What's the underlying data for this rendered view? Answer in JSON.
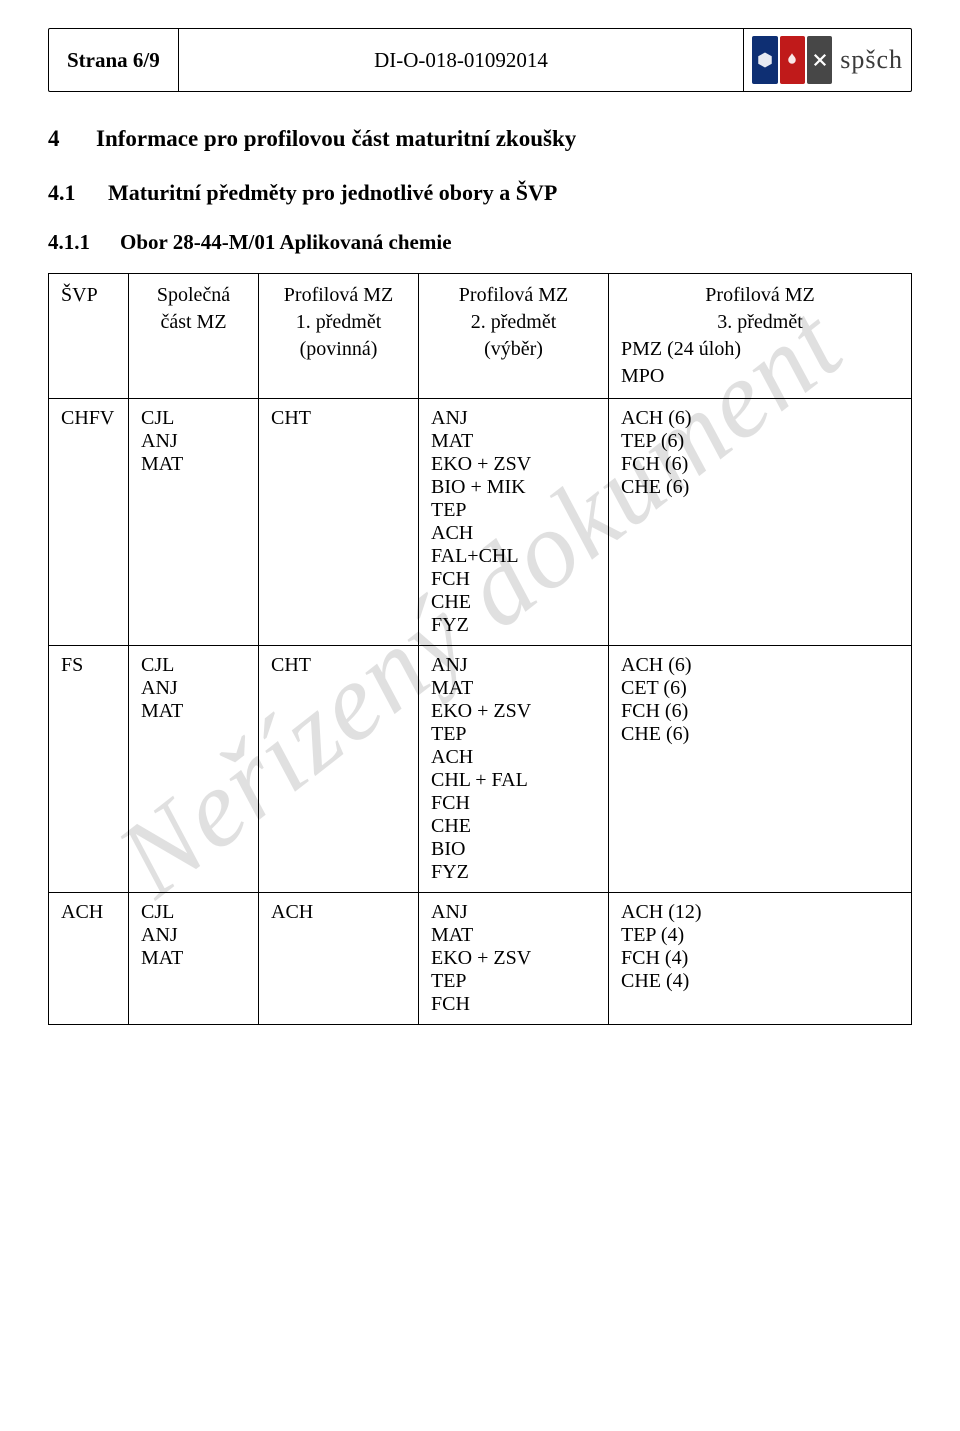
{
  "header": {
    "page_label": "Strana 6/9",
    "doc_code": "DI-O-018-01092014",
    "brand": "spšch"
  },
  "watermark": "Neřízený dokument",
  "section": {
    "num": "4",
    "title": "Informace pro profilovou část maturitní zkoušky"
  },
  "sub": {
    "num": "4.1",
    "title": "Maturitní předměty pro jednotlivé obory a ŠVP"
  },
  "sub2": {
    "num": "4.1.1",
    "title": "Obor 28-44-M/01  Aplikovaná chemie"
  },
  "table": {
    "head": {
      "c1": "ŠVP",
      "c2_l1": "Společná",
      "c2_l2": "část MZ",
      "c3_l1": "Profilová MZ",
      "c3_l2": "1. předmět",
      "c3_l3": "(povinná)",
      "c4_l1": "Profilová MZ",
      "c4_l2": "2. předmět",
      "c4_l3": "(výběr)",
      "c5_l1": "Profilová MZ",
      "c5_l2": "3. předmět",
      "c5_l3": "PMZ (24 úloh)",
      "c5_l4": "MPO"
    },
    "rows": [
      {
        "svp": "CHFV",
        "common": [
          "CJL",
          "ANJ",
          "MAT"
        ],
        "p1": "CHT",
        "p2": [
          "ANJ",
          "MAT",
          "EKO + ZSV",
          "BIO + MIK",
          "TEP",
          "ACH",
          "FAL+CHL",
          "FCH",
          "CHE",
          "FYZ"
        ],
        "p3": [
          "ACH (6)",
          "TEP (6)",
          "FCH (6)",
          "CHE (6)"
        ]
      },
      {
        "svp": "FS",
        "common": [
          "CJL",
          "ANJ",
          "MAT"
        ],
        "p1": "CHT",
        "p2": [
          "ANJ",
          "MAT",
          "EKO + ZSV",
          "TEP",
          "ACH",
          "CHL + FAL",
          "FCH",
          "CHE",
          "BIO",
          "FYZ"
        ],
        "p3": [
          "ACH (6)",
          "CET (6)",
          "FCH (6)",
          "CHE (6)"
        ]
      },
      {
        "svp": "ACH",
        "common": [
          "CJL",
          "ANJ",
          "MAT"
        ],
        "p1": "ACH",
        "p2": [
          "ANJ",
          "MAT",
          "EKO + ZSV",
          "TEP",
          "FCH"
        ],
        "p3": [
          "ACH (12)",
          "TEP (4)",
          "FCH (4)",
          "CHE (4)"
        ]
      }
    ]
  }
}
